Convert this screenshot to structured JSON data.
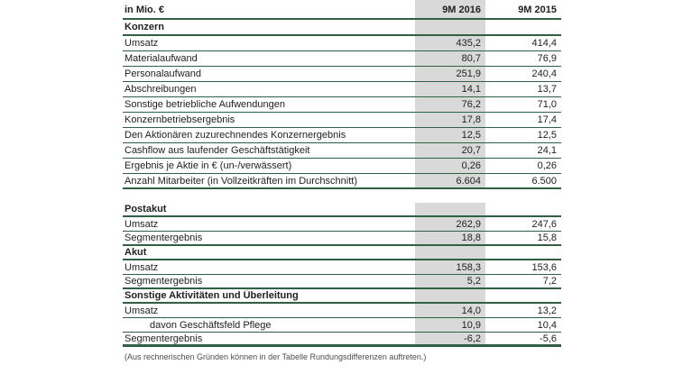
{
  "colors": {
    "rule_green": "#2f6043",
    "column_shade": "#d9d9d9",
    "text": "#222222"
  },
  "table": {
    "unit_label": "in Mio. €",
    "col_2016": "9M 2016",
    "col_2015": "9M 2015",
    "rows": [
      {
        "type": "section",
        "label": "Konzern",
        "v2016": "",
        "v2015": ""
      },
      {
        "type": "data",
        "label": "Umsatz",
        "v2016": "435,2",
        "v2015": "414,4"
      },
      {
        "type": "data",
        "label": "Materialaufwand",
        "v2016": "80,7",
        "v2015": "76,9"
      },
      {
        "type": "data",
        "label": "Personalaufwand",
        "v2016": "251,9",
        "v2015": "240,4"
      },
      {
        "type": "data",
        "label": "Abschreibungen",
        "v2016": "14,1",
        "v2015": "13,7"
      },
      {
        "type": "data",
        "label": "Sonstige betriebliche Aufwendungen",
        "v2016": "76,2",
        "v2015": "71,0"
      },
      {
        "type": "data",
        "label": "Konzernbetriebsergebnis",
        "v2016": "17,8",
        "v2015": "17,4"
      },
      {
        "type": "data",
        "label": "Den Aktionären zuzurechnendes Konzernergebnis",
        "v2016": "12,5",
        "v2015": "12,5"
      },
      {
        "type": "data",
        "label": "Cashflow aus laufender Geschäftstätigkeit",
        "v2016": "20,7",
        "v2015": "24,1"
      },
      {
        "type": "data",
        "label": "Ergebnis je Aktie in € (un-/verwässert)",
        "v2016": "0,26",
        "v2015": "0,26"
      },
      {
        "type": "data",
        "label": "Anzahl Mitarbeiter (in Vollzeitkräften im Durchschnitt)",
        "v2016": "6.604",
        "v2015": "6.500"
      },
      {
        "type": "section",
        "label": "Postakut",
        "v2016": "",
        "v2015": ""
      },
      {
        "type": "data",
        "label": "Umsatz",
        "v2016": "262,9",
        "v2015": "247,6"
      },
      {
        "type": "data",
        "label": "Segmentergebnis",
        "v2016": "18,8",
        "v2015": "15,8"
      },
      {
        "type": "section",
        "label": "Akut",
        "v2016": "",
        "v2015": ""
      },
      {
        "type": "data",
        "label": "Umsatz",
        "v2016": "158,3",
        "v2015": "153,6"
      },
      {
        "type": "data",
        "label": "Segmentergebnis",
        "v2016": "5,2",
        "v2015": "7,2"
      },
      {
        "type": "section",
        "label": "Sonstige Aktivitäten und Überleitung",
        "v2016": "",
        "v2015": ""
      },
      {
        "type": "data",
        "label": "Umsatz",
        "v2016": "14,0",
        "v2015": "13,2"
      },
      {
        "type": "data-indent",
        "label": "davon Geschäftsfeld Pflege",
        "v2016": "10,9",
        "v2015": "10,4"
      },
      {
        "type": "data",
        "label": "Segmentergebnis",
        "v2016": "-6,2",
        "v2015": "-5,6"
      }
    ]
  },
  "footnote": "(Aus rechnerischen Gründen können in der Tabelle Rundungsdifferenzen auftreten.)"
}
